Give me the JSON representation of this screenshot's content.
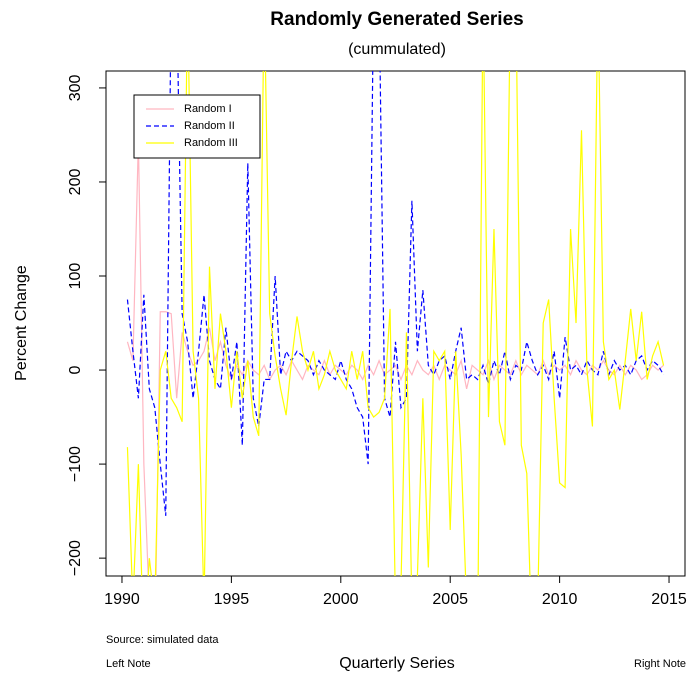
{
  "chart_data": {
    "type": "line",
    "title": "Randomly Generated Series",
    "subtitle": "(cummulated)",
    "x_label": "Quarterly Series",
    "y_label": "Percent Change",
    "annotations": [
      "Source: simulated data",
      "Left Note",
      "Right Note"
    ],
    "x": [
      1990.25,
      1990.5,
      1990.75,
      1991,
      1991.25,
      1991.5,
      1991.75,
      1992,
      1992.25,
      1992.5,
      1992.75,
      1993,
      1993.25,
      1993.5,
      1993.75,
      1994,
      1994.25,
      1994.5,
      1994.75,
      1995,
      1995.25,
      1995.5,
      1995.75,
      1996,
      1996.25,
      1996.5,
      1996.75,
      1997,
      1997.25,
      1997.5,
      1997.75,
      1998,
      1998.25,
      1998.5,
      1998.75,
      1999,
      1999.25,
      1999.5,
      1999.75,
      2000,
      2000.25,
      2000.5,
      2000.75,
      2001,
      2001.25,
      2001.5,
      2001.75,
      2002,
      2002.25,
      2002.5,
      2002.75,
      2003,
      2003.25,
      2003.5,
      2003.75,
      2004,
      2004.25,
      2004.5,
      2004.75,
      2005,
      2005.25,
      2005.5,
      2005.75,
      2006,
      2006.25,
      2006.5,
      2006.75,
      2007,
      2007.25,
      2007.5,
      2007.75,
      2008,
      2008.25,
      2008.5,
      2008.75,
      2009,
      2009.25,
      2009.5,
      2009.75,
      2010,
      2010.25,
      2010.5,
      2010.75,
      2011,
      2011.25,
      2011.5,
      2011.75,
      2012,
      2012.25,
      2012.5,
      2012.75,
      2013,
      2013.25,
      2013.5,
      2013.75,
      2014,
      2014.25,
      2014.5,
      2014.75
    ],
    "series": [
      {
        "name": "Random I",
        "color": "#ffb6c1",
        "dash": "solid",
        "values": [
          30,
          10,
          245,
          -100,
          -250,
          -300,
          62,
          62,
          60,
          -30,
          40,
          20,
          5,
          10,
          20,
          45,
          10,
          30,
          5,
          -10,
          5,
          -5,
          10,
          0,
          -5,
          5,
          -10,
          0,
          5,
          -5,
          10,
          0,
          -10,
          5,
          0,
          -5,
          10,
          -5,
          5,
          0,
          -5,
          5,
          0,
          -10,
          5,
          -5,
          10,
          -5,
          0,
          5,
          -10,
          5,
          -5,
          10,
          0,
          -5,
          5,
          -10,
          5,
          0,
          -5,
          10,
          -20,
          5,
          0,
          -5,
          10,
          -10,
          5,
          0,
          -5,
          10,
          -5,
          5,
          0,
          -5,
          10,
          -5,
          5,
          0,
          5,
          -5,
          10,
          0,
          -5,
          5,
          0,
          10,
          0,
          -5,
          5,
          -5,
          5,
          0,
          -10,
          -5,
          5,
          0,
          5
        ]
      },
      {
        "name": "Random II",
        "color": "#0000ff",
        "dash": "dashed",
        "values": [
          75,
          20,
          -30,
          80,
          -20,
          -40,
          -100,
          -155,
          400,
          400,
          60,
          30,
          -30,
          20,
          80,
          10,
          -10,
          -20,
          45,
          -10,
          30,
          -80,
          220,
          -30,
          -60,
          -10,
          -10,
          100,
          -5,
          20,
          10,
          20,
          15,
          10,
          -5,
          10,
          0,
          -5,
          -10,
          10,
          -10,
          -20,
          -40,
          -50,
          -100,
          400,
          400,
          -30,
          -50,
          30,
          -40,
          -30,
          180,
          20,
          85,
          5,
          -5,
          10,
          15,
          -10,
          20,
          45,
          -10,
          -5,
          -10,
          5,
          -15,
          10,
          -5,
          20,
          -10,
          5,
          0,
          30,
          10,
          -5,
          5,
          -10,
          20,
          -30,
          35,
          0,
          5,
          -5,
          10,
          0,
          -5,
          20,
          -5,
          10,
          0,
          5,
          -5,
          10,
          15,
          0,
          10,
          5,
          -5
        ]
      },
      {
        "name": "Random III",
        "color": "#ffff00",
        "dash": "solid",
        "values": [
          -82,
          -250,
          -100,
          -300,
          -200,
          -250,
          0,
          20,
          -30,
          -40,
          -55,
          400,
          20,
          -30,
          -250,
          110,
          -20,
          60,
          20,
          -40,
          20,
          -30,
          10,
          -50,
          -70,
          400,
          60,
          15,
          -20,
          -48,
          10,
          57,
          20,
          0,
          20,
          -20,
          -5,
          20,
          0,
          -10,
          -20,
          20,
          -10,
          20,
          -40,
          -50,
          -45,
          -30,
          65,
          -250,
          -230,
          40,
          -250,
          -220,
          -30,
          -210,
          20,
          10,
          20,
          -170,
          20,
          -90,
          -250,
          -230,
          -300,
          400,
          -50,
          150,
          -55,
          -80,
          400,
          400,
          -80,
          -110,
          -300,
          -250,
          50,
          75,
          -30,
          -120,
          -125,
          150,
          50,
          255,
          0,
          -60,
          400,
          30,
          -10,
          0,
          -42,
          10,
          65,
          10,
          62,
          -10,
          15,
          30,
          5
        ]
      }
    ],
    "xlim": [
      1989.27,
      2015.73
    ],
    "ylim": [
      -219,
      318
    ],
    "xticks": [
      1990,
      1995,
      2000,
      2005,
      2010,
      2015
    ],
    "yticks": [
      {
        "value": -200,
        "label": "−200"
      },
      {
        "value": -100,
        "label": "−100"
      },
      0,
      100,
      200,
      300
    ],
    "legend": "top-left"
  }
}
